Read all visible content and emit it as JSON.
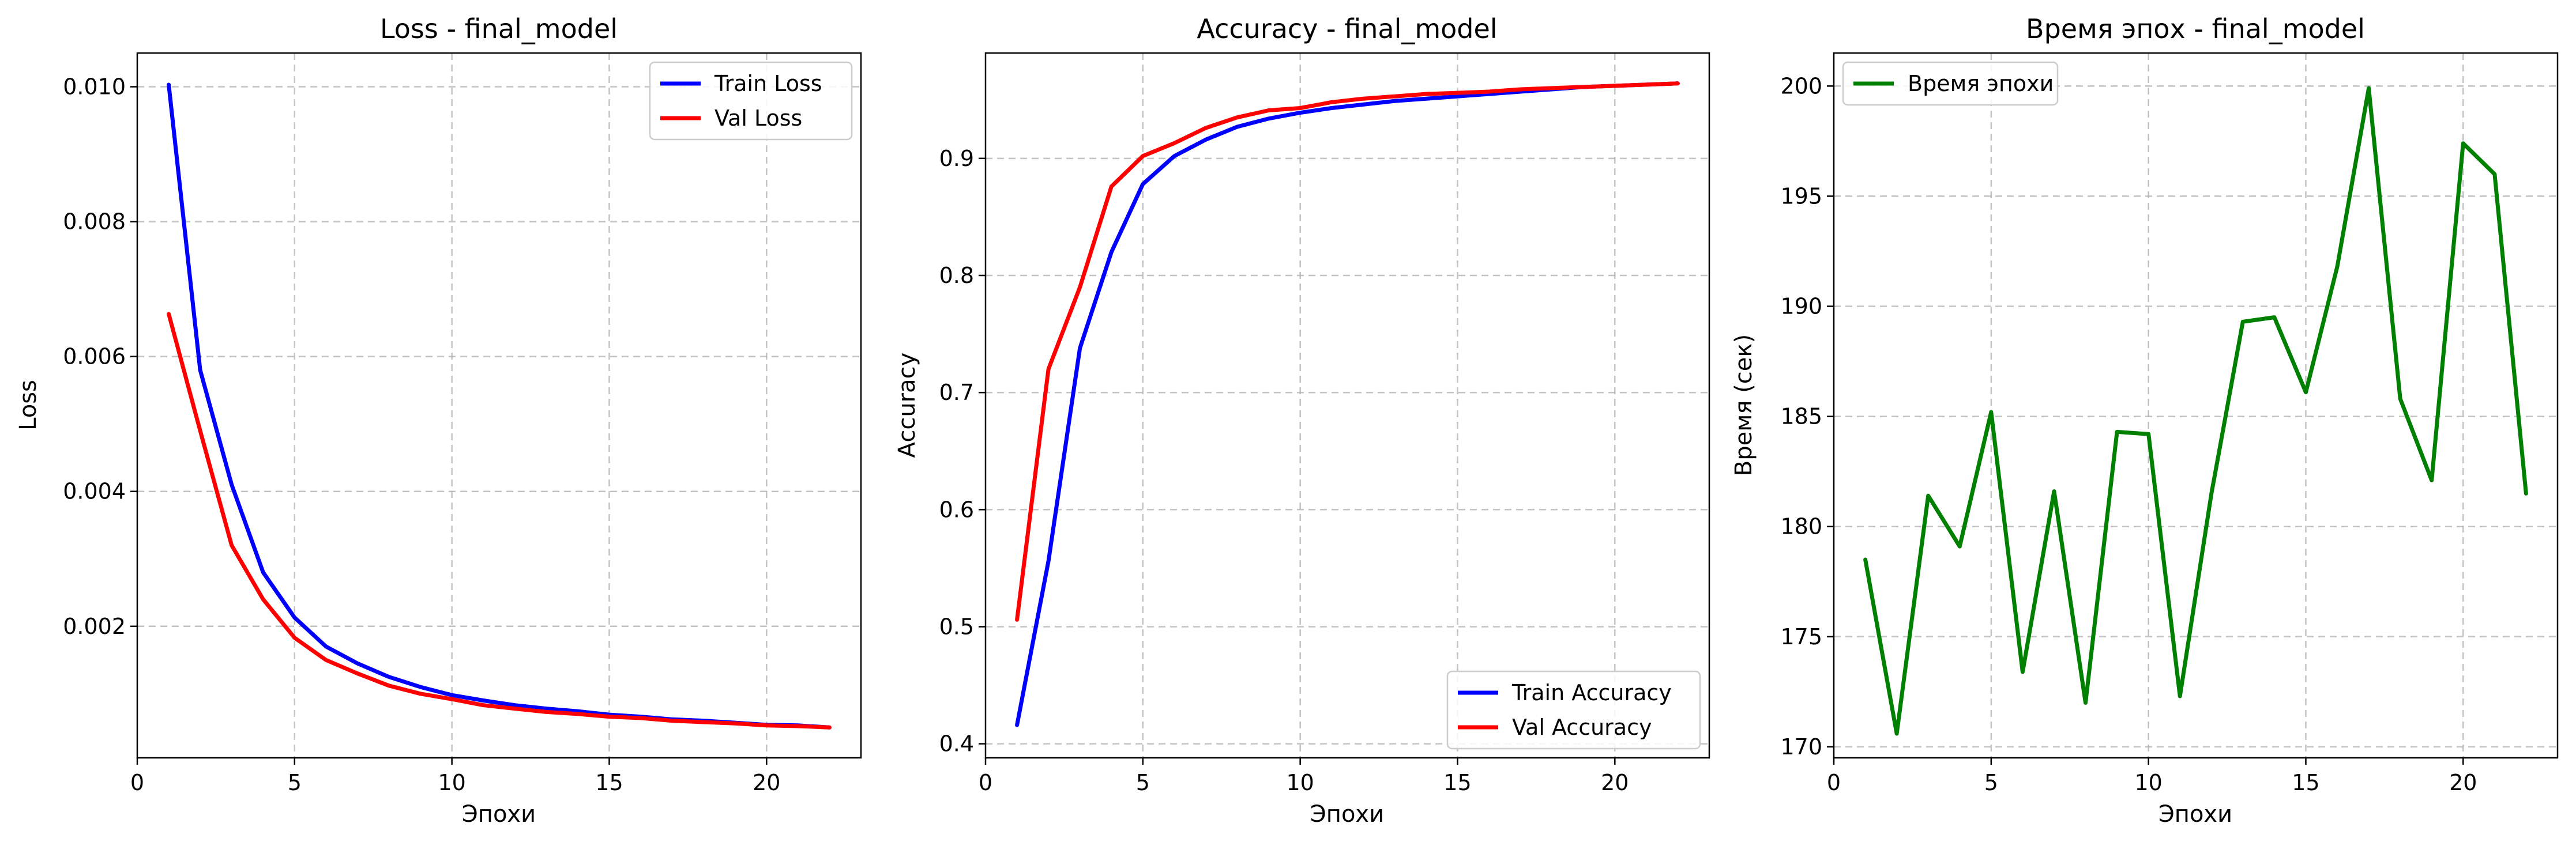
{
  "chart_data": [
    {
      "type": "line",
      "title": "Loss - final_model",
      "xlabel": "Эпохи",
      "ylabel": "Loss",
      "xlim": [
        0,
        23
      ],
      "ylim": [
        5e-05,
        0.0105
      ],
      "xticks": [
        0,
        5,
        10,
        15,
        20
      ],
      "yticks": [
        0.002,
        0.004,
        0.006,
        0.008,
        0.01
      ],
      "ytick_labels": [
        "0.002",
        "0.004",
        "0.006",
        "0.008",
        "0.010"
      ],
      "grid": true,
      "legend": "top-right",
      "x": [
        1,
        2,
        3,
        4,
        5,
        6,
        7,
        8,
        9,
        10,
        11,
        12,
        13,
        14,
        15,
        16,
        17,
        18,
        19,
        20,
        21,
        22
      ],
      "series": [
        {
          "name": "Train Loss",
          "color": "#0000ff",
          "values": [
            0.01003,
            0.0058,
            0.0041,
            0.0028,
            0.00213,
            0.0017,
            0.00145,
            0.00125,
            0.0011,
            0.00098,
            0.0009,
            0.00083,
            0.00078,
            0.00074,
            0.00069,
            0.00066,
            0.00062,
            0.0006,
            0.00057,
            0.00054,
            0.00053,
            0.0005
          ]
        },
        {
          "name": "Val Loss",
          "color": "#ff0000",
          "values": [
            0.00663,
            0.0049,
            0.0032,
            0.0024,
            0.00183,
            0.0015,
            0.0013,
            0.00112,
            0.001,
            0.00092,
            0.00083,
            0.00078,
            0.00073,
            0.0007,
            0.00066,
            0.00064,
            0.0006,
            0.00058,
            0.00056,
            0.00053,
            0.00052,
            0.0005
          ]
        }
      ]
    },
    {
      "type": "line",
      "title": "Accuracy - final_model",
      "xlabel": "Эпохи",
      "ylabel": "Accuracy",
      "xlim": [
        0,
        23
      ],
      "ylim": [
        0.388,
        0.99
      ],
      "xticks": [
        0,
        5,
        10,
        15,
        20
      ],
      "yticks": [
        0.4,
        0.5,
        0.6,
        0.7,
        0.8,
        0.9
      ],
      "ytick_labels": [
        "0.4",
        "0.5",
        "0.6",
        "0.7",
        "0.8",
        "0.9"
      ],
      "grid": true,
      "legend": "bottom-right",
      "x": [
        1,
        2,
        3,
        4,
        5,
        6,
        7,
        8,
        9,
        10,
        11,
        12,
        13,
        14,
        15,
        16,
        17,
        18,
        19,
        20,
        21,
        22
      ],
      "series": [
        {
          "name": "Train Accuracy",
          "color": "#0000ff",
          "values": [
            0.416,
            0.556,
            0.738,
            0.82,
            0.878,
            0.902,
            0.916,
            0.927,
            0.934,
            0.939,
            0.943,
            0.946,
            0.949,
            0.951,
            0.953,
            0.955,
            0.957,
            0.959,
            0.961,
            0.962,
            0.963,
            0.964
          ]
        },
        {
          "name": "Val Accuracy",
          "color": "#ff0000",
          "values": [
            0.506,
            0.72,
            0.79,
            0.876,
            0.902,
            0.913,
            0.926,
            0.935,
            0.941,
            0.943,
            0.948,
            0.951,
            0.953,
            0.955,
            0.956,
            0.957,
            0.959,
            0.96,
            0.961,
            0.962,
            0.963,
            0.964
          ]
        }
      ]
    },
    {
      "type": "line",
      "title": "Время эпох - final_model",
      "xlabel": "Эпохи",
      "ylabel": "Время (сек)",
      "xlim": [
        0,
        23
      ],
      "ylim": [
        169.5,
        201.5
      ],
      "xticks": [
        0,
        5,
        10,
        15,
        20
      ],
      "yticks": [
        170,
        175,
        180,
        185,
        190,
        195,
        200
      ],
      "ytick_labels": [
        "170",
        "175",
        "180",
        "185",
        "190",
        "195",
        "200"
      ],
      "grid": true,
      "legend": "top-left",
      "x": [
        1,
        2,
        3,
        4,
        5,
        6,
        7,
        8,
        9,
        10,
        11,
        12,
        13,
        14,
        15,
        16,
        17,
        18,
        19,
        20,
        21,
        22
      ],
      "series": [
        {
          "name": "Время эпохи",
          "color": "#008000",
          "values": [
            178.5,
            170.6,
            181.4,
            179.1,
            185.2,
            173.4,
            181.6,
            172.0,
            184.3,
            184.2,
            172.3,
            181.5,
            189.3,
            189.5,
            186.1,
            191.8,
            199.9,
            185.8,
            182.1,
            197.4,
            196.0,
            181.5
          ]
        }
      ]
    }
  ]
}
